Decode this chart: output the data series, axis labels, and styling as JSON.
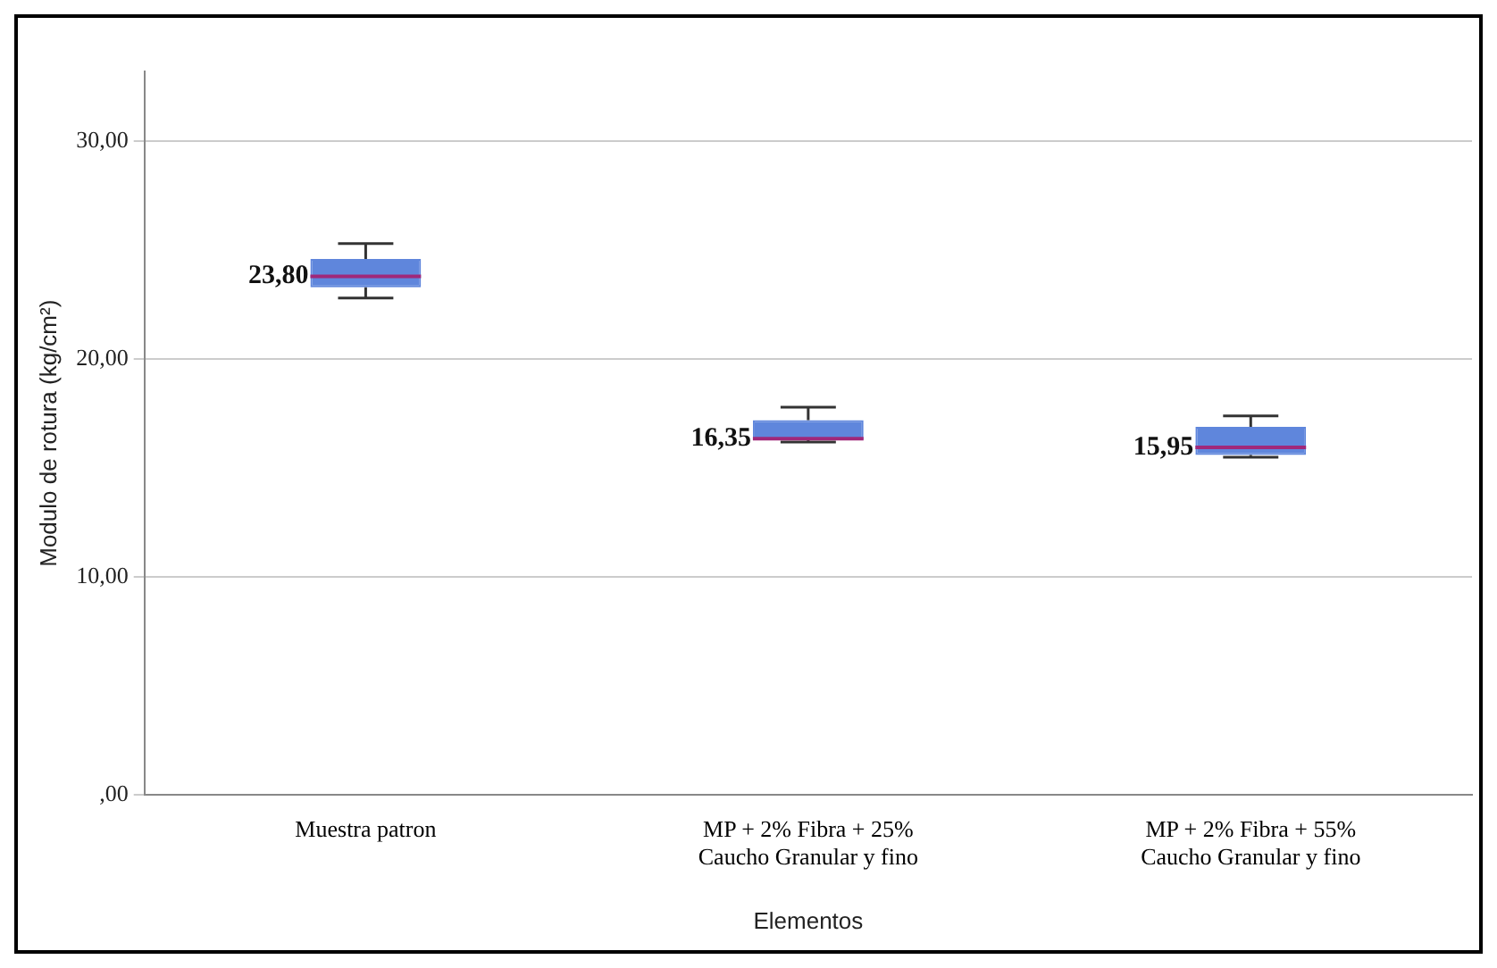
{
  "chart_data": {
    "type": "box",
    "xlabel": "Elementos",
    "ylabel": "Modulo de rotura (kg/cm²)",
    "categories": [
      "Muestra patron",
      "MP + 2% Fibra + 25%\nCaucho Granular y fino",
      "MP + 2% Fibra + 55%\nCaucho Granular y fino"
    ],
    "boxes": [
      {
        "low": 22.8,
        "q1": 23.3,
        "median": 23.8,
        "q3": 24.6,
        "high": 25.3
      },
      {
        "low": 16.2,
        "q1": 16.3,
        "median": 16.35,
        "q3": 17.2,
        "high": 17.8
      },
      {
        "low": 15.5,
        "q1": 15.6,
        "median": 15.95,
        "q3": 16.9,
        "high": 17.4
      }
    ],
    "color": "#5f86dc",
    "ylim": [
      0,
      33.2
    ],
    "yticks": [
      {
        "value": 0,
        "label": ",00"
      },
      {
        "value": 10,
        "label": "10,00"
      },
      {
        "value": 20,
        "label": "20,00"
      },
      {
        "value": 30,
        "label": "30,00"
      }
    ],
    "grid": "y",
    "annotations": [
      {
        "text": "23,80",
        "x": "Muestra patron",
        "y": 23.8
      },
      {
        "text": "16,35",
        "x": "MP + 2% Fibra + 25%\nCaucho Granular y fino",
        "y": 16.35
      },
      {
        "text": "15,95",
        "x": "MP + 2% Fibra + 55%\nCaucho Granular y fino",
        "y": 15.95
      }
    ]
  }
}
